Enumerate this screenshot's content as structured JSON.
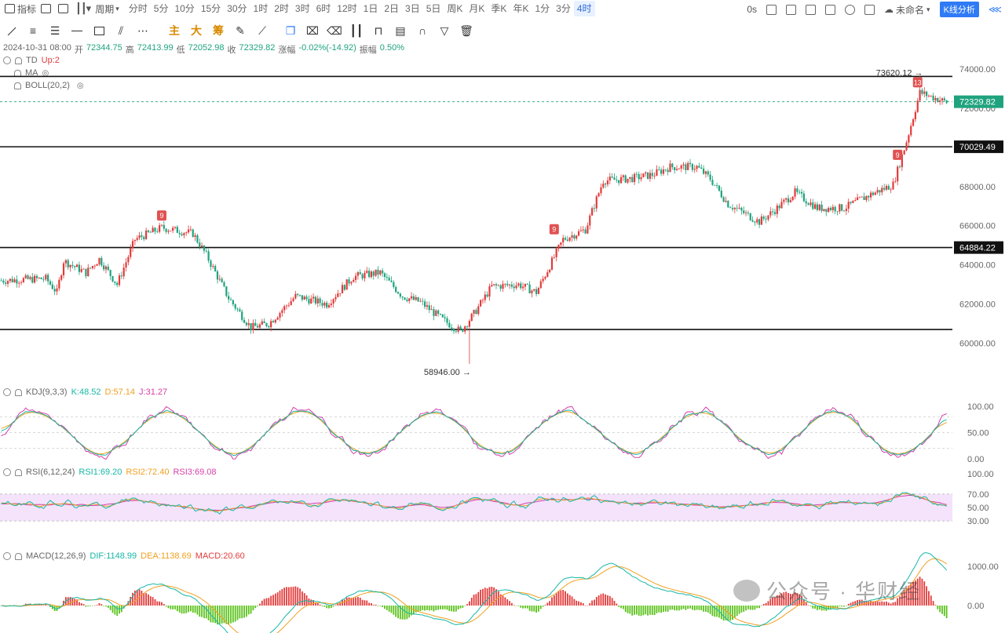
{
  "toolbar1": {
    "indicator_label": "指标",
    "period_menu": "周期",
    "periods": [
      "分时",
      "5分",
      "10分",
      "15分",
      "30分",
      "1时",
      "2时",
      "3时",
      "6时",
      "12时",
      "1日",
      "2日",
      "3日",
      "5日",
      "周K",
      "月K",
      "季K",
      "年K",
      "1分",
      "3分",
      "4时"
    ],
    "active_period": "4时",
    "countdown": "0s",
    "layout_name": "未命名",
    "kline_analysis_button": "K线分析"
  },
  "toolbar2": {
    "tools": [
      "line-tool",
      "parallel-tool",
      "channel-tool",
      "horizontal-tool",
      "rectangle-tool",
      "fib-tool",
      "more-tool"
    ],
    "text_tools": [
      "主",
      "大",
      "筹"
    ]
  },
  "info": {
    "datetime": "2024-10-31 08:00",
    "open_label": "开",
    "open": "72344.75",
    "high_label": "高",
    "high": "72413.99",
    "low_label": "低",
    "low": "72052.98",
    "close_label": "收",
    "close": "72329.82",
    "change_label": "涨幅",
    "change": "-0.02%(-14.92)",
    "amplitude_label": "振幅",
    "amplitude": "0.50%"
  },
  "indicators": {
    "td": {
      "name": "TD",
      "value": "Up:2"
    },
    "ma": {
      "name": "MA"
    },
    "boll": {
      "name": "BOLL(20,2)"
    },
    "kdj": {
      "name": "KDJ(9,3,3)",
      "k": "K:48.52",
      "d": "D:57.14",
      "j": "J:31.27"
    },
    "rsi": {
      "name": "RSI(6,12,24)",
      "rsi1": "RSI1:69.20",
      "rsi2": "RSI2:72.40",
      "rsi3": "RSI3:69.08"
    },
    "macd": {
      "name": "MACD(12,26,9)",
      "dif": "DIF:1148.99",
      "dea": "DEA:1138.69",
      "macd": "MACD:20.60"
    }
  },
  "price_axis": {
    "ticks": [
      "74000.00",
      "72000.00",
      "68000.00",
      "66000.00",
      "64000.00",
      "62000.00",
      "60000.00"
    ],
    "ticks_values": [
      74000,
      72000,
      68000,
      66000,
      64000,
      62000,
      60000
    ],
    "badges": [
      {
        "text": "72329.82",
        "value": 72329.82,
        "style": "teal"
      },
      {
        "text": "70029.49",
        "value": 70029.49,
        "style": "black"
      },
      {
        "text": "64884.22",
        "value": 64884.22,
        "style": "black"
      }
    ]
  },
  "kdj_axis": {
    "ticks": [
      "100.00",
      "50.00",
      "0.00"
    ]
  },
  "rsi_axis": {
    "ticks": [
      "100.00",
      "70.00",
      "50.00",
      "30.00"
    ]
  },
  "macd_axis": {
    "ticks": [
      "1000.00",
      "0.00"
    ]
  },
  "annotations": {
    "high_marker": "73620.12",
    "low_marker": "58946.00",
    "td_counts": [
      "9",
      "9",
      "9",
      "13"
    ]
  },
  "watermark": "公众号 · 华财经",
  "colors": {
    "up": "#e23b3b",
    "down": "#1fa37e",
    "k": "#17b7a6",
    "d": "#f0a020",
    "j": "#d63fa8",
    "accent": "#2f7bf6"
  },
  "chart_data": {
    "type": "candlestick",
    "timeframe": "4h",
    "ylim": [
      58500,
      74800
    ],
    "horizontal_levels": [
      73620.12,
      70029.49,
      64884.22,
      60700
    ],
    "last_price": 72329.82,
    "close_path_anchors": [
      [
        0,
        63200
      ],
      [
        20,
        63300
      ],
      [
        25,
        62600
      ],
      [
        28,
        64200
      ],
      [
        38,
        63600
      ],
      [
        44,
        64300
      ],
      [
        52,
        63000
      ],
      [
        60,
        65300
      ],
      [
        72,
        65900
      ],
      [
        86,
        65600
      ],
      [
        92,
        64500
      ],
      [
        102,
        62300
      ],
      [
        112,
        60800
      ],
      [
        120,
        61000
      ],
      [
        132,
        62400
      ],
      [
        146,
        62000
      ],
      [
        158,
        63400
      ],
      [
        170,
        63600
      ],
      [
        180,
        62400
      ],
      [
        188,
        62100
      ],
      [
        198,
        61200
      ],
      [
        206,
        60600
      ],
      [
        212,
        61500
      ],
      [
        220,
        62900
      ],
      [
        232,
        63000
      ],
      [
        240,
        62600
      ],
      [
        252,
        65300
      ],
      [
        262,
        65800
      ],
      [
        270,
        68300
      ],
      [
        282,
        68400
      ],
      [
        292,
        68600
      ],
      [
        300,
        69000
      ],
      [
        312,
        69000
      ],
      [
        318,
        68400
      ],
      [
        326,
        67100
      ],
      [
        340,
        66200
      ],
      [
        346,
        66700
      ],
      [
        356,
        67700
      ],
      [
        366,
        66900
      ],
      [
        378,
        66900
      ],
      [
        390,
        67600
      ],
      [
        400,
        68100
      ],
      [
        406,
        70300
      ],
      [
        412,
        72800
      ],
      [
        424,
        72300
      ]
    ]
  }
}
